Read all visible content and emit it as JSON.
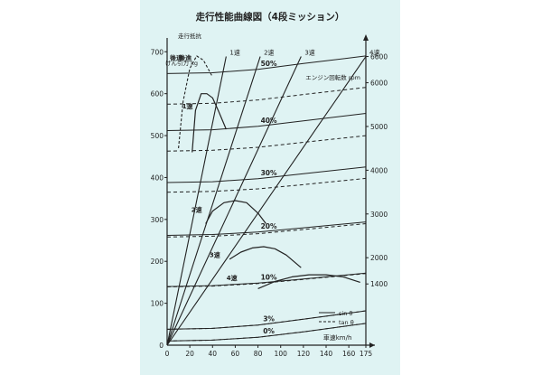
{
  "chart_data": {
    "type": "line",
    "title": "走行性能曲線図（4段ミッション）",
    "ylabel_left": "けん引力 kg",
    "ylabel_left_extra": "走行抵抗",
    "ylabel_right": "エンジン回転数 rpm",
    "xlabel": "車速km/h",
    "x_ticks": [
      "0",
      "20",
      "40",
      "60",
      "80",
      "100",
      "120",
      "140",
      "160",
      "175"
    ],
    "y_left_ticks": [
      "100",
      "200",
      "300",
      "400",
      "500",
      "600",
      "700"
    ],
    "y_right_ticks": [
      "1400",
      "2000",
      "3000",
      "4000",
      "5000",
      "6000",
      "6600"
    ],
    "xlim": [
      0,
      175
    ],
    "ylim_left": [
      0,
      720
    ],
    "ylim_right": [
      0,
      6900
    ],
    "gear_labels": [
      {
        "label": "1速",
        "x": 18,
        "y": 565
      },
      {
        "label": "2速",
        "x": 26,
        "y": 318
      },
      {
        "label": "3速",
        "x": 42,
        "y": 210
      },
      {
        "label": "4速",
        "x": 57,
        "y": 155
      },
      {
        "label": "後退",
        "x": 8,
        "y": 680
      },
      {
        "label": "後進",
        "x": 16,
        "y": 680
      }
    ],
    "rpm_lines": [
      {
        "name": "1速",
        "label": "1速",
        "end": [
          52,
          6600
        ]
      },
      {
        "name": "2速",
        "label": "2速",
        "end": [
          82,
          6600
        ]
      },
      {
        "name": "3速",
        "label": "3速",
        "end": [
          118,
          6600
        ]
      },
      {
        "name": "4速",
        "label": "4速",
        "end": [
          175,
          6600
        ]
      }
    ],
    "traction": [
      {
        "name": "1速",
        "x": [
          22,
          25,
          30,
          35,
          40,
          45,
          52
        ],
        "y": [
          460,
          560,
          600,
          600,
          590,
          560,
          515
        ]
      },
      {
        "name": "2速",
        "x": [
          34,
          40,
          50,
          60,
          70,
          80,
          87
        ],
        "y": [
          290,
          320,
          340,
          345,
          340,
          315,
          290
        ]
      },
      {
        "name": "3速",
        "x": [
          55,
          65,
          75,
          85,
          95,
          105,
          118
        ],
        "y": [
          205,
          222,
          232,
          235,
          230,
          215,
          185
        ]
      },
      {
        "name": "4速",
        "x": [
          80,
          95,
          110,
          125,
          140,
          155,
          170
        ],
        "y": [
          135,
          152,
          163,
          168,
          168,
          163,
          150
        ]
      }
    ],
    "traction_reverse": {
      "name": "後退",
      "x": [
        10,
        14,
        20,
        26,
        32,
        40
      ],
      "y": [
        470,
        580,
        660,
        690,
        680,
        640
      ]
    },
    "resistance": [
      {
        "label": "50%",
        "sin_y": [
          648,
          650,
          658,
          672,
          690
        ],
        "tan_y": [
          575,
          577,
          585,
          598,
          615
        ]
      },
      {
        "label": "40%",
        "sin_y": [
          512,
          514,
          522,
          535,
          553
        ],
        "tan_y": [
          463,
          465,
          472,
          484,
          500
        ]
      },
      {
        "label": "30%",
        "sin_y": [
          388,
          390,
          397,
          409,
          425
        ],
        "tan_y": [
          365,
          367,
          373,
          383,
          398
        ]
      },
      {
        "label": "20%",
        "sin_y": [
          262,
          264,
          270,
          280,
          294
        ],
        "tan_y": [
          258,
          260,
          266,
          276,
          290
        ]
      },
      {
        "label": "10%",
        "sin_y": [
          140,
          142,
          148,
          158,
          172
        ],
        "tan_y": [
          139,
          141,
          147,
          157,
          171
        ]
      },
      {
        "label": "3%",
        "sin_y": [
          38,
          40,
          48,
          62,
          82
        ],
        "tan_y": [
          38,
          40,
          48,
          62,
          82
        ]
      },
      {
        "label": "0%",
        "sin_y": [
          10,
          12,
          19,
          32,
          52
        ],
        "tan_y": [
          10,
          12,
          19,
          32,
          52
        ]
      }
    ],
    "resistance_x": [
      0,
      40,
      80,
      120,
      175
    ],
    "legend": [
      {
        "label": "sin θ",
        "style": "solid"
      },
      {
        "label": "tan θ",
        "style": "dashed"
      }
    ],
    "colors": {
      "background": "#dff3f3",
      "ink": "#222222"
    }
  }
}
